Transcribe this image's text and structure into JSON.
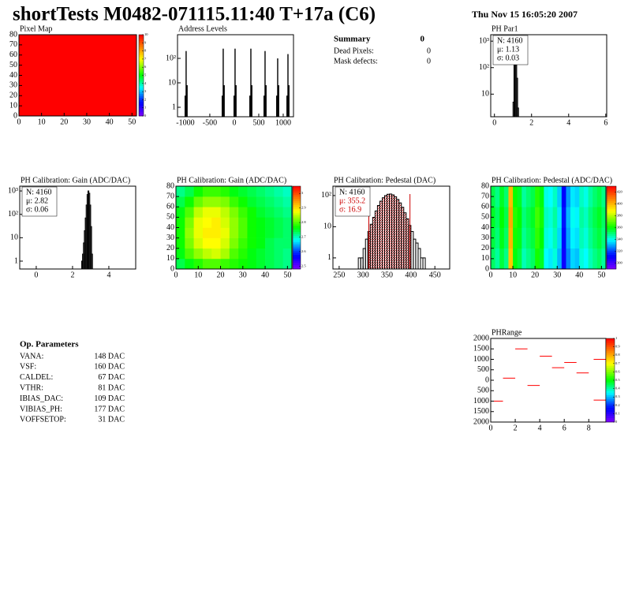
{
  "header": {
    "title": "shortTests M0482-071115.11:40 T+17a (C6)",
    "date": "Thu Nov 15 16:05:20 2007"
  },
  "summary": {
    "title": "Summary",
    "total": 0,
    "rows": [
      [
        "Dead Pixels:",
        0
      ],
      [
        "Mask defects:",
        0
      ]
    ]
  },
  "op_parameters": {
    "title": "Op. Parameters",
    "rows": [
      [
        "VANA:",
        "148 DAC"
      ],
      [
        "VSF:",
        "160 DAC"
      ],
      [
        "CALDEL:",
        "67 DAC"
      ],
      [
        "VTHR:",
        "81 DAC"
      ],
      [
        "IBIAS_DAC:",
        "109 DAC"
      ],
      [
        "VIBIAS_PH:",
        "177 DAC"
      ],
      [
        "VOFFSETOP:",
        "31 DAC"
      ]
    ]
  },
  "chart_data": [
    {
      "type": "heatmap",
      "title": "Pixel Map",
      "xbins": [
        0,
        52
      ],
      "ybins": [
        0,
        80
      ],
      "values": [
        [
          10
        ]
      ],
      "xlim": [
        0,
        52
      ],
      "ylim": [
        0,
        80
      ],
      "xticks": [
        0,
        10,
        20,
        30,
        40,
        50
      ],
      "yticks": [
        0,
        10,
        20,
        30,
        40,
        50,
        60,
        70,
        80
      ],
      "zlim": [
        0,
        10
      ],
      "zticks": [
        0,
        1,
        2,
        3,
        4,
        5,
        6,
        7,
        8,
        9,
        10
      ]
    },
    {
      "type": "spikes",
      "title": "Address Levels",
      "log_y": true,
      "color": "#000000",
      "x": [
        -1004,
        -984,
        -964,
        -246,
        -226,
        -206,
        -4,
        16,
        36,
        319,
        339,
        359,
        609,
        629,
        649,
        867,
        887,
        907,
        1077,
        1097,
        1117
      ],
      "values": [
        3,
        200,
        8,
        3,
        250,
        8,
        3,
        250,
        8,
        3,
        250,
        8,
        3,
        200,
        8,
        3,
        100,
        8,
        3,
        150,
        8
      ],
      "xlim": [
        -1160,
        1210
      ],
      "ylim": [
        0.41,
        930
      ],
      "xticks": [
        -1000,
        -500,
        0,
        500,
        1000
      ],
      "yticks": [
        1,
        10,
        {
          "value": 100,
          "label": "10²"
        }
      ]
    },
    {
      "type": "histogram",
      "title": "PH Par1",
      "log_y": true,
      "bins": [
        1.0,
        1.05,
        1.1,
        1.15,
        1.2,
        1.25,
        1.3
      ],
      "values": [
        5,
        300,
        1000,
        600,
        40,
        3
      ],
      "xlim": [
        -0.2,
        6.05
      ],
      "ylim": [
        1.4,
        1750
      ],
      "xticks": [
        0,
        2,
        4,
        6
      ],
      "yticks": [
        10,
        {
          "value": 100,
          "label": "10²"
        },
        {
          "value": 1000,
          "label": "10³"
        }
      ],
      "stats": [
        "N: 4160",
        "μ: 1.13",
        "σ: 0.03"
      ]
    },
    {
      "type": "histogram",
      "title": "PH Calibration: Gain (ADC/DAC)",
      "log_y": true,
      "bins": [
        2.5,
        2.55,
        2.6,
        2.65,
        2.7,
        2.75,
        2.8,
        2.85,
        2.9,
        2.95,
        3.0,
        3.05,
        3.1
      ],
      "values": [
        1,
        2,
        6,
        20,
        70,
        250,
        700,
        1000,
        800,
        250,
        30,
        2
      ],
      "xlim": [
        -0.91,
        5.48
      ],
      "ylim": [
        0.46,
        1600
      ],
      "xticks": [
        0,
        2,
        4
      ],
      "yticks": [
        1,
        10,
        {
          "value": 100,
          "label": "10²"
        },
        {
          "value": 1000,
          "label": "10³"
        }
      ],
      "stats": [
        "N: 4160",
        "μ: 2.82",
        "σ: 0.06"
      ]
    },
    {
      "type": "heatmap",
      "title": "PH Calibration: Gain (ADC/DAC)",
      "xbins": [
        0,
        4,
        8,
        12,
        16,
        20,
        24,
        28,
        32,
        36,
        40,
        44,
        48,
        52
      ],
      "ybins": [
        0,
        10,
        20,
        30,
        40,
        50,
        60,
        70,
        80
      ],
      "values": [
        [
          2.74,
          2.76,
          2.78,
          2.8,
          2.8,
          2.79,
          2.78,
          2.77,
          2.76,
          2.75,
          2.74,
          2.73,
          2.72
        ],
        [
          2.76,
          2.8,
          2.83,
          2.85,
          2.86,
          2.84,
          2.8,
          2.78,
          2.76,
          2.75,
          2.74,
          2.73,
          2.72
        ],
        [
          2.77,
          2.82,
          2.86,
          2.88,
          2.88,
          2.86,
          2.82,
          2.79,
          2.77,
          2.76,
          2.74,
          2.73,
          2.73
        ],
        [
          2.77,
          2.83,
          2.87,
          2.89,
          2.89,
          2.87,
          2.83,
          2.8,
          2.77,
          2.76,
          2.75,
          2.74,
          2.73
        ],
        [
          2.77,
          2.82,
          2.87,
          2.88,
          2.89,
          2.86,
          2.83,
          2.8,
          2.77,
          2.76,
          2.75,
          2.74,
          2.73
        ],
        [
          2.76,
          2.8,
          2.85,
          2.87,
          2.87,
          2.85,
          2.82,
          2.79,
          2.77,
          2.75,
          2.74,
          2.73,
          2.72
        ],
        [
          2.74,
          2.77,
          2.81,
          2.83,
          2.83,
          2.82,
          2.79,
          2.77,
          2.75,
          2.74,
          2.73,
          2.72,
          2.71
        ],
        [
          2.72,
          2.74,
          2.77,
          2.79,
          2.79,
          2.78,
          2.76,
          2.75,
          2.74,
          2.73,
          2.72,
          2.71,
          2.7
        ]
      ],
      "xlim": [
        0,
        52
      ],
      "ylim": [
        0,
        80
      ],
      "xticks": [
        0,
        10,
        20,
        30,
        40,
        50
      ],
      "yticks": [
        0,
        10,
        20,
        30,
        40,
        50,
        60,
        70,
        80
      ],
      "zlim": [
        2.48,
        3.05
      ],
      "zticks": [
        2.5,
        2.6,
        2.7,
        2.8,
        2.9,
        3
      ]
    },
    {
      "type": "histogram",
      "title": "PH Calibration: Pedestal (DAC)",
      "log_y": true,
      "bins": [
        290,
        295,
        300,
        305,
        310,
        315,
        320,
        325,
        330,
        335,
        340,
        345,
        350,
        355,
        360,
        365,
        370,
        375,
        380,
        385,
        390,
        395,
        400,
        405,
        410,
        415,
        420,
        425,
        430
      ],
      "values": [
        1,
        1,
        2,
        4,
        7,
        12,
        20,
        32,
        48,
        66,
        85,
        100,
        110,
        112,
        105,
        92,
        75,
        58,
        42,
        28,
        18,
        11,
        7,
        4,
        3,
        2,
        1,
        1
      ],
      "xlim": [
        237,
        481
      ],
      "ylim": [
        0.44,
        200
      ],
      "xticks": [
        250,
        300,
        350,
        400,
        450
      ],
      "yticks": [
        1,
        10,
        {
          "value": 100,
          "label": "10²"
        }
      ],
      "stats": [
        "N: 4160",
        "μ: 355.2",
        "σ: 16.9"
      ],
      "stats_colors": [
        "#000000",
        "#cc0000",
        "#cc0000"
      ],
      "fit_lines": [
        312,
        398
      ],
      "fit_color": "#cc0000"
    },
    {
      "type": "heatmap",
      "title": "PH Calibration: Pedestal (ADC/DAC)",
      "xbins": [
        0,
        2,
        4,
        6,
        8,
        10,
        12,
        14,
        16,
        18,
        20,
        22,
        24,
        26,
        28,
        30,
        32,
        34,
        36,
        38,
        40,
        42,
        44,
        46,
        48,
        50,
        52
      ],
      "ybins": [
        0,
        20,
        40,
        60,
        80
      ],
      "values": [
        [
          352,
          347,
          355,
          349,
          397,
          359,
          355,
          345,
          349,
          352,
          362,
          357,
          339,
          337,
          342,
          332,
          309,
          327,
          335,
          333,
          342,
          339,
          345,
          349,
          352,
          347
        ],
        [
          355,
          350,
          358,
          352,
          400,
          362,
          358,
          348,
          352,
          355,
          365,
          360,
          342,
          340,
          345,
          335,
          312,
          330,
          338,
          336,
          345,
          342,
          348,
          352,
          355,
          350
        ],
        [
          357,
          352,
          360,
          354,
          402,
          364,
          360,
          350,
          354,
          357,
          367,
          362,
          344,
          342,
          347,
          337,
          314,
          332,
          340,
          338,
          347,
          344,
          350,
          354,
          357,
          352
        ],
        [
          354,
          349,
          357,
          351,
          399,
          361,
          357,
          347,
          351,
          354,
          364,
          359,
          341,
          339,
          344,
          334,
          311,
          329,
          337,
          335,
          344,
          341,
          347,
          351,
          354,
          349
        ]
      ],
      "xlim": [
        0,
        52
      ],
      "ylim": [
        0,
        80
      ],
      "xticks": [
        0,
        10,
        20,
        30,
        40,
        50
      ],
      "yticks": [
        0,
        10,
        20,
        30,
        40,
        50,
        60,
        70,
        80
      ],
      "zlim": [
        290,
        430
      ],
      "zticks": [
        300,
        320,
        340,
        360,
        380,
        400,
        420
      ]
    },
    {
      "type": "segments",
      "title": "PHRange",
      "color": "#ff0000",
      "x": [
        0.5,
        1.5,
        2.5,
        3.5,
        4.5,
        5.5,
        6.5,
        7.5,
        8.9,
        8.9
      ],
      "values": [
        -1000,
        100,
        1500,
        -250,
        1150,
        600,
        850,
        350,
        1000,
        -950
      ],
      "xlim": [
        0,
        9.4
      ],
      "ylim": [
        -2000,
        2000
      ],
      "xticks": [
        0,
        2,
        4,
        6,
        8
      ],
      "yticks": [
        {
          "value": -2000,
          "label": "2000"
        },
        {
          "value": -1500,
          "label": "1500"
        },
        {
          "value": -1000,
          "label": "1000"
        },
        {
          "value": -500,
          "label": "500"
        },
        0,
        500,
        1000,
        1500,
        2000
      ],
      "zlim": [
        0,
        1
      ],
      "zticks": [
        0,
        0.1,
        0.2,
        0.3,
        0.4,
        0.5,
        0.6,
        0.7,
        0.8,
        0.9,
        1
      ]
    }
  ]
}
